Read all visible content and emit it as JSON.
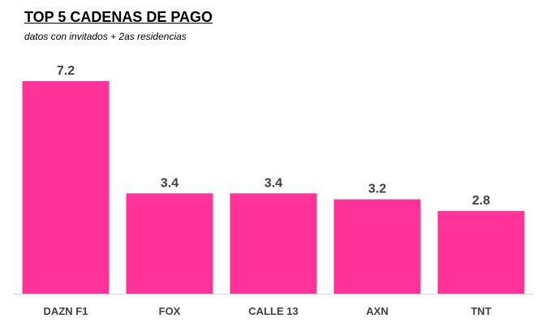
{
  "chart_data": {
    "type": "bar",
    "title": "TOP 5 CADENAS DE PAGO",
    "subtitle": "datos con invitados + 2as residencias",
    "categories": [
      "DAZN F1",
      "FOX",
      "CALLE 13",
      "AXN",
      "TNT"
    ],
    "values": [
      7.2,
      3.4,
      3.4,
      3.2,
      2.8
    ],
    "value_labels": [
      "7.2",
      "3.4",
      "3.4",
      "3.2",
      "2.8"
    ],
    "xlabel": "",
    "ylabel": "",
    "ylim": [
      0,
      7.2
    ],
    "grid": false,
    "legend": "none",
    "bar_color": "#FF3399",
    "label_color": "#404040"
  }
}
